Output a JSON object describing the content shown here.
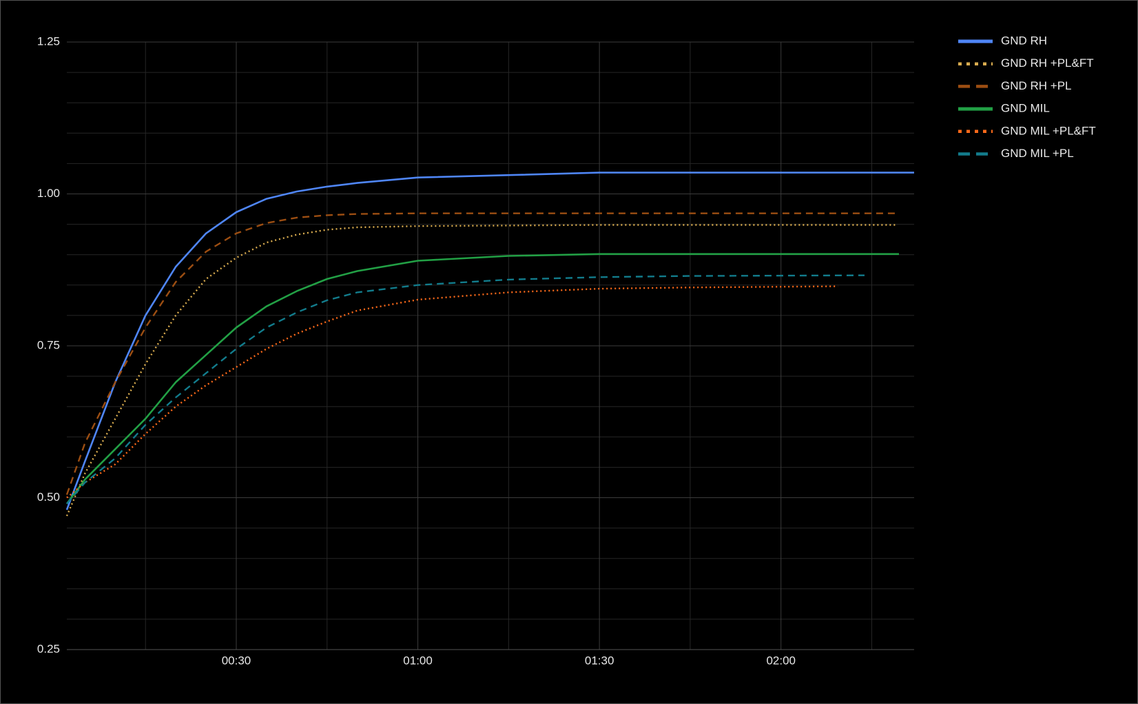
{
  "chart_data": {
    "type": "line",
    "xlim": [
      2,
      142
    ],
    "xticks": [
      {
        "value": 30,
        "label": "00:30"
      },
      {
        "value": 60,
        "label": "01:00"
      },
      {
        "value": 90,
        "label": "01:30"
      },
      {
        "value": 120,
        "label": "02:00"
      }
    ],
    "xminor": [
      15,
      45,
      75,
      105,
      135
    ],
    "ylim": [
      0.25,
      1.25
    ],
    "yticks": [
      0.25,
      {
        "value": 0.5,
        "label": "0.50"
      },
      {
        "value": 0.75,
        "label": "0.75"
      },
      {
        "value": 1,
        "label": "1.00"
      },
      1.25
    ],
    "yminor": [
      0.3,
      0.35,
      0.4,
      0.45,
      0.55,
      0.6,
      0.65,
      0.7,
      0.8,
      0.85,
      0.9,
      0.95,
      1.05,
      1.1,
      1.15,
      1.2
    ],
    "grid": true,
    "legend": "right",
    "series": [
      {
        "name": "GND RH",
        "color": "#4f86f7",
        "dash": "solid",
        "x": [
          2,
          5,
          10,
          15,
          20,
          25,
          30,
          35,
          40,
          45,
          50,
          60,
          75,
          90,
          105,
          120,
          142
        ],
        "values": [
          0.48,
          0.56,
          0.69,
          0.8,
          0.88,
          0.935,
          0.97,
          0.992,
          1.004,
          1.012,
          1.018,
          1.027,
          1.031,
          1.035,
          1.035,
          1.035,
          1.035
        ]
      },
      {
        "name": "GND RH +PL&FT",
        "color": "#d9ac4f",
        "dash": "dotted",
        "x": [
          2,
          5,
          10,
          15,
          20,
          25,
          30,
          35,
          40,
          45,
          50,
          60,
          75,
          90,
          139
        ],
        "values": [
          0.47,
          0.54,
          0.63,
          0.72,
          0.8,
          0.86,
          0.895,
          0.92,
          0.933,
          0.941,
          0.945,
          0.947,
          0.948,
          0.949,
          0.949
        ]
      },
      {
        "name": "GND RH +PL",
        "color": "#9c4e12",
        "dash": "dashed",
        "x": [
          2,
          5,
          10,
          15,
          20,
          25,
          30,
          35,
          40,
          45,
          50,
          60,
          75,
          90,
          139.5
        ],
        "values": [
          0.505,
          0.59,
          0.69,
          0.78,
          0.855,
          0.905,
          0.935,
          0.952,
          0.961,
          0.965,
          0.967,
          0.968,
          0.968,
          0.968,
          0.968
        ]
      },
      {
        "name": "GND MIL",
        "color": "#22a045",
        "dash": "solid",
        "x": [
          2,
          5,
          10,
          15,
          20,
          25,
          30,
          35,
          40,
          45,
          50,
          60,
          75,
          90,
          139.5
        ],
        "values": [
          0.49,
          0.53,
          0.58,
          0.63,
          0.69,
          0.735,
          0.78,
          0.815,
          0.84,
          0.86,
          0.873,
          0.89,
          0.898,
          0.901,
          0.901
        ]
      },
      {
        "name": "GND MIL +PL&FT",
        "color": "#ff6a1a",
        "dash": "dotted",
        "x": [
          2,
          5,
          10,
          15,
          20,
          25,
          30,
          35,
          40,
          45,
          50,
          60,
          75,
          90,
          105,
          129.4
        ],
        "values": [
          0.5,
          0.525,
          0.555,
          0.605,
          0.65,
          0.685,
          0.715,
          0.745,
          0.77,
          0.79,
          0.808,
          0.826,
          0.838,
          0.844,
          0.846,
          0.848
        ]
      },
      {
        "name": "GND MIL +PL",
        "color": "#127c8c",
        "dash": "dashed",
        "x": [
          2,
          5,
          10,
          15,
          20,
          25,
          30,
          35,
          40,
          45,
          50,
          60,
          75,
          90,
          105,
          133.8
        ],
        "values": [
          0.49,
          0.525,
          0.565,
          0.62,
          0.665,
          0.705,
          0.745,
          0.78,
          0.805,
          0.825,
          0.838,
          0.85,
          0.859,
          0.863,
          0.865,
          0.866
        ]
      }
    ]
  }
}
